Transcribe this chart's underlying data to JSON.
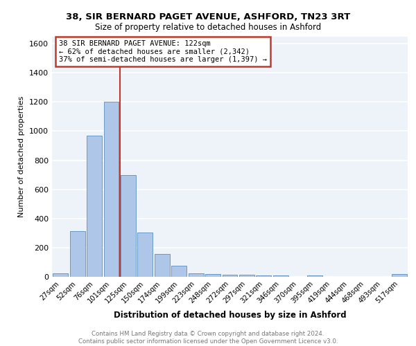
{
  "title1": "38, SIR BERNARD PAGET AVENUE, ASHFORD, TN23 3RT",
  "title2": "Size of property relative to detached houses in Ashford",
  "xlabel": "Distribution of detached houses by size in Ashford",
  "ylabel": "Number of detached properties",
  "categories": [
    "27sqm",
    "52sqm",
    "76sqm",
    "101sqm",
    "125sqm",
    "150sqm",
    "174sqm",
    "199sqm",
    "223sqm",
    "248sqm",
    "272sqm",
    "297sqm",
    "321sqm",
    "346sqm",
    "370sqm",
    "395sqm",
    "419sqm",
    "444sqm",
    "468sqm",
    "493sqm",
    "517sqm"
  ],
  "values": [
    25,
    315,
    970,
    1200,
    700,
    305,
    155,
    75,
    25,
    20,
    15,
    15,
    10,
    10,
    0,
    10,
    0,
    0,
    0,
    0,
    20
  ],
  "bar_color": "#aec6e8",
  "bar_edge_color": "#5a8fc2",
  "vline_color": "#c0392b",
  "annotation_title": "38 SIR BERNARD PAGET AVENUE: 122sqm",
  "annotation_line1": "← 62% of detached houses are smaller (2,342)",
  "annotation_line2": "37% of semi-detached houses are larger (1,397) →",
  "annotation_box_color": "#ffffff",
  "annotation_box_edge": "#c0392b",
  "ylim": [
    0,
    1650
  ],
  "yticks": [
    0,
    200,
    400,
    600,
    800,
    1000,
    1200,
    1400,
    1600
  ],
  "footer": "Contains HM Land Registry data © Crown copyright and database right 2024.\nContains public sector information licensed under the Open Government Licence v3.0.",
  "background_color": "#eef2f9",
  "grid_color": "#ffffff"
}
